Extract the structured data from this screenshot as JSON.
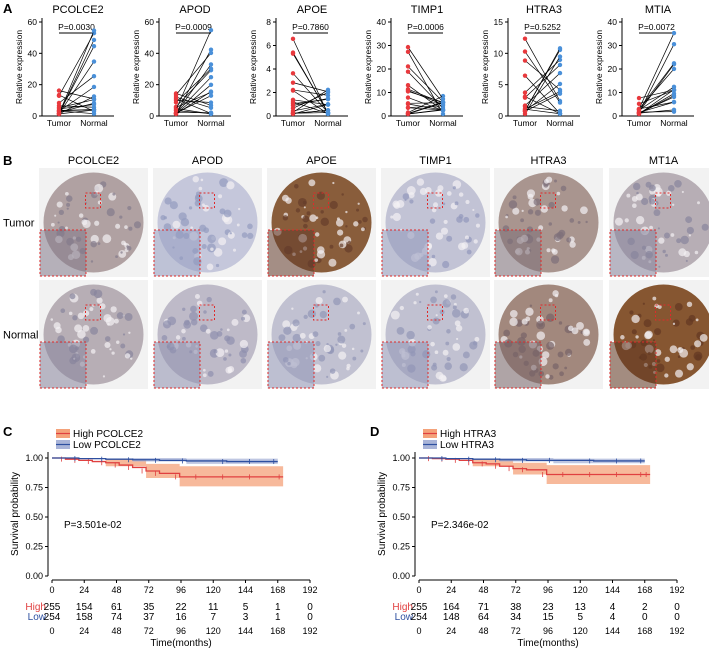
{
  "panel_labels": {
    "a": "A",
    "b": "B",
    "c": "C",
    "d": "D"
  },
  "colors": {
    "tumor": "#e8393d",
    "normal": "#4a90d9",
    "high_curve": "#e04040",
    "high_band": "#f4a27a",
    "low_curve": "#2d4fa0",
    "low_band": "#a9b4d8",
    "stain_low": "#c9cde4",
    "stain_high": "#8b4a22",
    "roi": "#e02a2a"
  },
  "panel_a": {
    "ylabel": "Relative expression",
    "xcat_tumor": "Tumor",
    "xcat_normal": "Normal",
    "genes": [
      {
        "title": "PCOLCE2",
        "p_label": "P=0.0030",
        "ylim": [
          0,
          60
        ],
        "ticks": [
          "0",
          "20",
          "40",
          "60"
        ]
      },
      {
        "title": "APOD",
        "p_label": "P=0.0009",
        "ylim": [
          0,
          60
        ],
        "ticks": [
          "0",
          "20",
          "40",
          "60"
        ]
      },
      {
        "title": "APOE",
        "p_label": "P=0.7860",
        "ylim": [
          0,
          8
        ],
        "ticks": [
          "0",
          "2",
          "4",
          "6",
          "8"
        ]
      },
      {
        "title": "TIMP1",
        "p_label": "P=0.0006",
        "ylim": [
          0,
          40
        ],
        "ticks": [
          "0",
          "10",
          "20",
          "30",
          "40"
        ]
      },
      {
        "title": "HTRA3",
        "p_label": "P=0.5252",
        "ylim": [
          0,
          15
        ],
        "ticks": [
          "0",
          "5",
          "10",
          "15"
        ]
      },
      {
        "title": "MTIA",
        "p_label": "P=0.0072",
        "ylim": [
          0,
          40
        ],
        "ticks": [
          "0",
          "10",
          "20",
          "30",
          "40"
        ]
      }
    ]
  },
  "panel_b": {
    "columns": [
      "PCOLCE2",
      "APOD",
      "APOE",
      "TIMP1",
      "HTRA3",
      "MT1A"
    ],
    "rows": [
      "Tumor",
      "Normal"
    ],
    "stain_intensity": {
      "Tumor": [
        0.35,
        0.05,
        0.9,
        0.08,
        0.45,
        0.25
      ],
      "Normal": [
        0.25,
        0.15,
        0.1,
        0.1,
        0.55,
        0.95
      ]
    }
  },
  "chart_data": [
    {
      "type": "line",
      "title": "",
      "subtype": "kaplan-meier",
      "legend": [
        {
          "name": "High PCOLCE2"
        },
        {
          "name": "Low PCOLCE2"
        }
      ],
      "xlabel": "Time(months)",
      "ylabel": "Survival probability",
      "xlim": [
        0,
        192
      ],
      "ylim": [
        0,
        1
      ],
      "xticks": [
        0,
        24,
        48,
        72,
        96,
        120,
        144,
        168,
        192
      ],
      "xtick_labels": [
        "0",
        "24",
        "48",
        "72",
        "96",
        "120",
        "144",
        "168",
        "192"
      ],
      "yticks": [
        0,
        0.25,
        0.5,
        0.75,
        1
      ],
      "ytick_labels": [
        "0.00",
        "0.25",
        "0.50",
        "0.75",
        "1.00"
      ],
      "pvalue_label": "P=3.501e-02",
      "series": [
        {
          "name": "High PCOLCE2",
          "x": [
            0,
            10,
            20,
            30,
            40,
            50,
            60,
            70,
            80,
            95,
            110,
            130,
            150,
            172
          ],
          "y": [
            1.0,
            0.99,
            0.98,
            0.97,
            0.96,
            0.94,
            0.92,
            0.89,
            0.87,
            0.84,
            0.84,
            0.84,
            0.84,
            0.84
          ]
        },
        {
          "name": "Low PCOLCE2",
          "x": [
            0,
            20,
            40,
            60,
            80,
            100,
            130,
            150,
            168
          ],
          "y": [
            1.0,
            0.995,
            0.99,
            0.985,
            0.98,
            0.975,
            0.97,
            0.97,
            0.97
          ]
        }
      ],
      "bands": [
        {
          "name": "High PCOLCE2",
          "x": [
            0,
            40,
            70,
            95,
            172
          ],
          "upper": [
            1.0,
            0.99,
            0.95,
            0.93,
            0.93
          ],
          "lower": [
            1.0,
            0.93,
            0.83,
            0.76,
            0.76
          ]
        },
        {
          "name": "Low PCOLCE2",
          "x": [
            0,
            60,
            100,
            168
          ],
          "upper": [
            1.0,
            1.0,
            0.995,
            0.995
          ],
          "lower": [
            1.0,
            0.97,
            0.95,
            0.94
          ]
        }
      ],
      "risk_table": {
        "rows": [
          {
            "label": "High",
            "values": [
              "255",
              "154",
              "61",
              "35",
              "22",
              "11",
              "5",
              "1",
              "0"
            ]
          },
          {
            "label": "Low",
            "values": [
              "254",
              "158",
              "74",
              "37",
              "16",
              "7",
              "3",
              "1",
              "0"
            ]
          }
        ]
      }
    },
    {
      "type": "line",
      "title": "",
      "subtype": "kaplan-meier",
      "legend": [
        {
          "name": "High HTRA3"
        },
        {
          "name": "Low HTRA3"
        }
      ],
      "xlabel": "Time(months)",
      "ylabel": "Survival probability",
      "xlim": [
        0,
        192
      ],
      "ylim": [
        0,
        1
      ],
      "xticks": [
        0,
        24,
        48,
        72,
        96,
        120,
        144,
        168,
        192
      ],
      "xtick_labels": [
        "0",
        "24",
        "48",
        "72",
        "96",
        "120",
        "144",
        "168",
        "192"
      ],
      "yticks": [
        0,
        0.25,
        0.5,
        0.75,
        1
      ],
      "ytick_labels": [
        "0.00",
        "0.25",
        "0.50",
        "0.75",
        "1.00"
      ],
      "pvalue_label": "P=2.346e-02",
      "series": [
        {
          "name": "High HTRA3",
          "x": [
            0,
            10,
            20,
            30,
            40,
            50,
            60,
            70,
            80,
            95,
            110,
            130,
            150,
            168,
            172
          ],
          "y": [
            1.0,
            0.995,
            0.99,
            0.98,
            0.96,
            0.95,
            0.93,
            0.91,
            0.9,
            0.86,
            0.86,
            0.86,
            0.86,
            0.86,
            0.86
          ]
        },
        {
          "name": "Low HTRA3",
          "x": [
            0,
            20,
            40,
            60,
            80,
            100,
            130,
            150,
            168
          ],
          "y": [
            1.0,
            0.995,
            0.99,
            0.985,
            0.98,
            0.98,
            0.975,
            0.975,
            0.975
          ]
        }
      ],
      "bands": [
        {
          "name": "High HTRA3",
          "x": [
            0,
            40,
            70,
            95,
            172
          ],
          "upper": [
            1.0,
            0.99,
            0.96,
            0.94,
            0.94
          ],
          "lower": [
            1.0,
            0.93,
            0.86,
            0.78,
            0.78
          ]
        },
        {
          "name": "Low HTRA3",
          "x": [
            0,
            60,
            100,
            168
          ],
          "upper": [
            1.0,
            1.0,
            0.995,
            0.995
          ],
          "lower": [
            1.0,
            0.97,
            0.955,
            0.945
          ]
        }
      ],
      "risk_table": {
        "rows": [
          {
            "label": "High",
            "values": [
              "255",
              "164",
              "71",
              "38",
              "23",
              "13",
              "4",
              "2",
              "0"
            ]
          },
          {
            "label": "Low",
            "values": [
              "254",
              "148",
              "64",
              "34",
              "15",
              "5",
              "4",
              "0",
              "0"
            ]
          }
        ]
      }
    }
  ]
}
